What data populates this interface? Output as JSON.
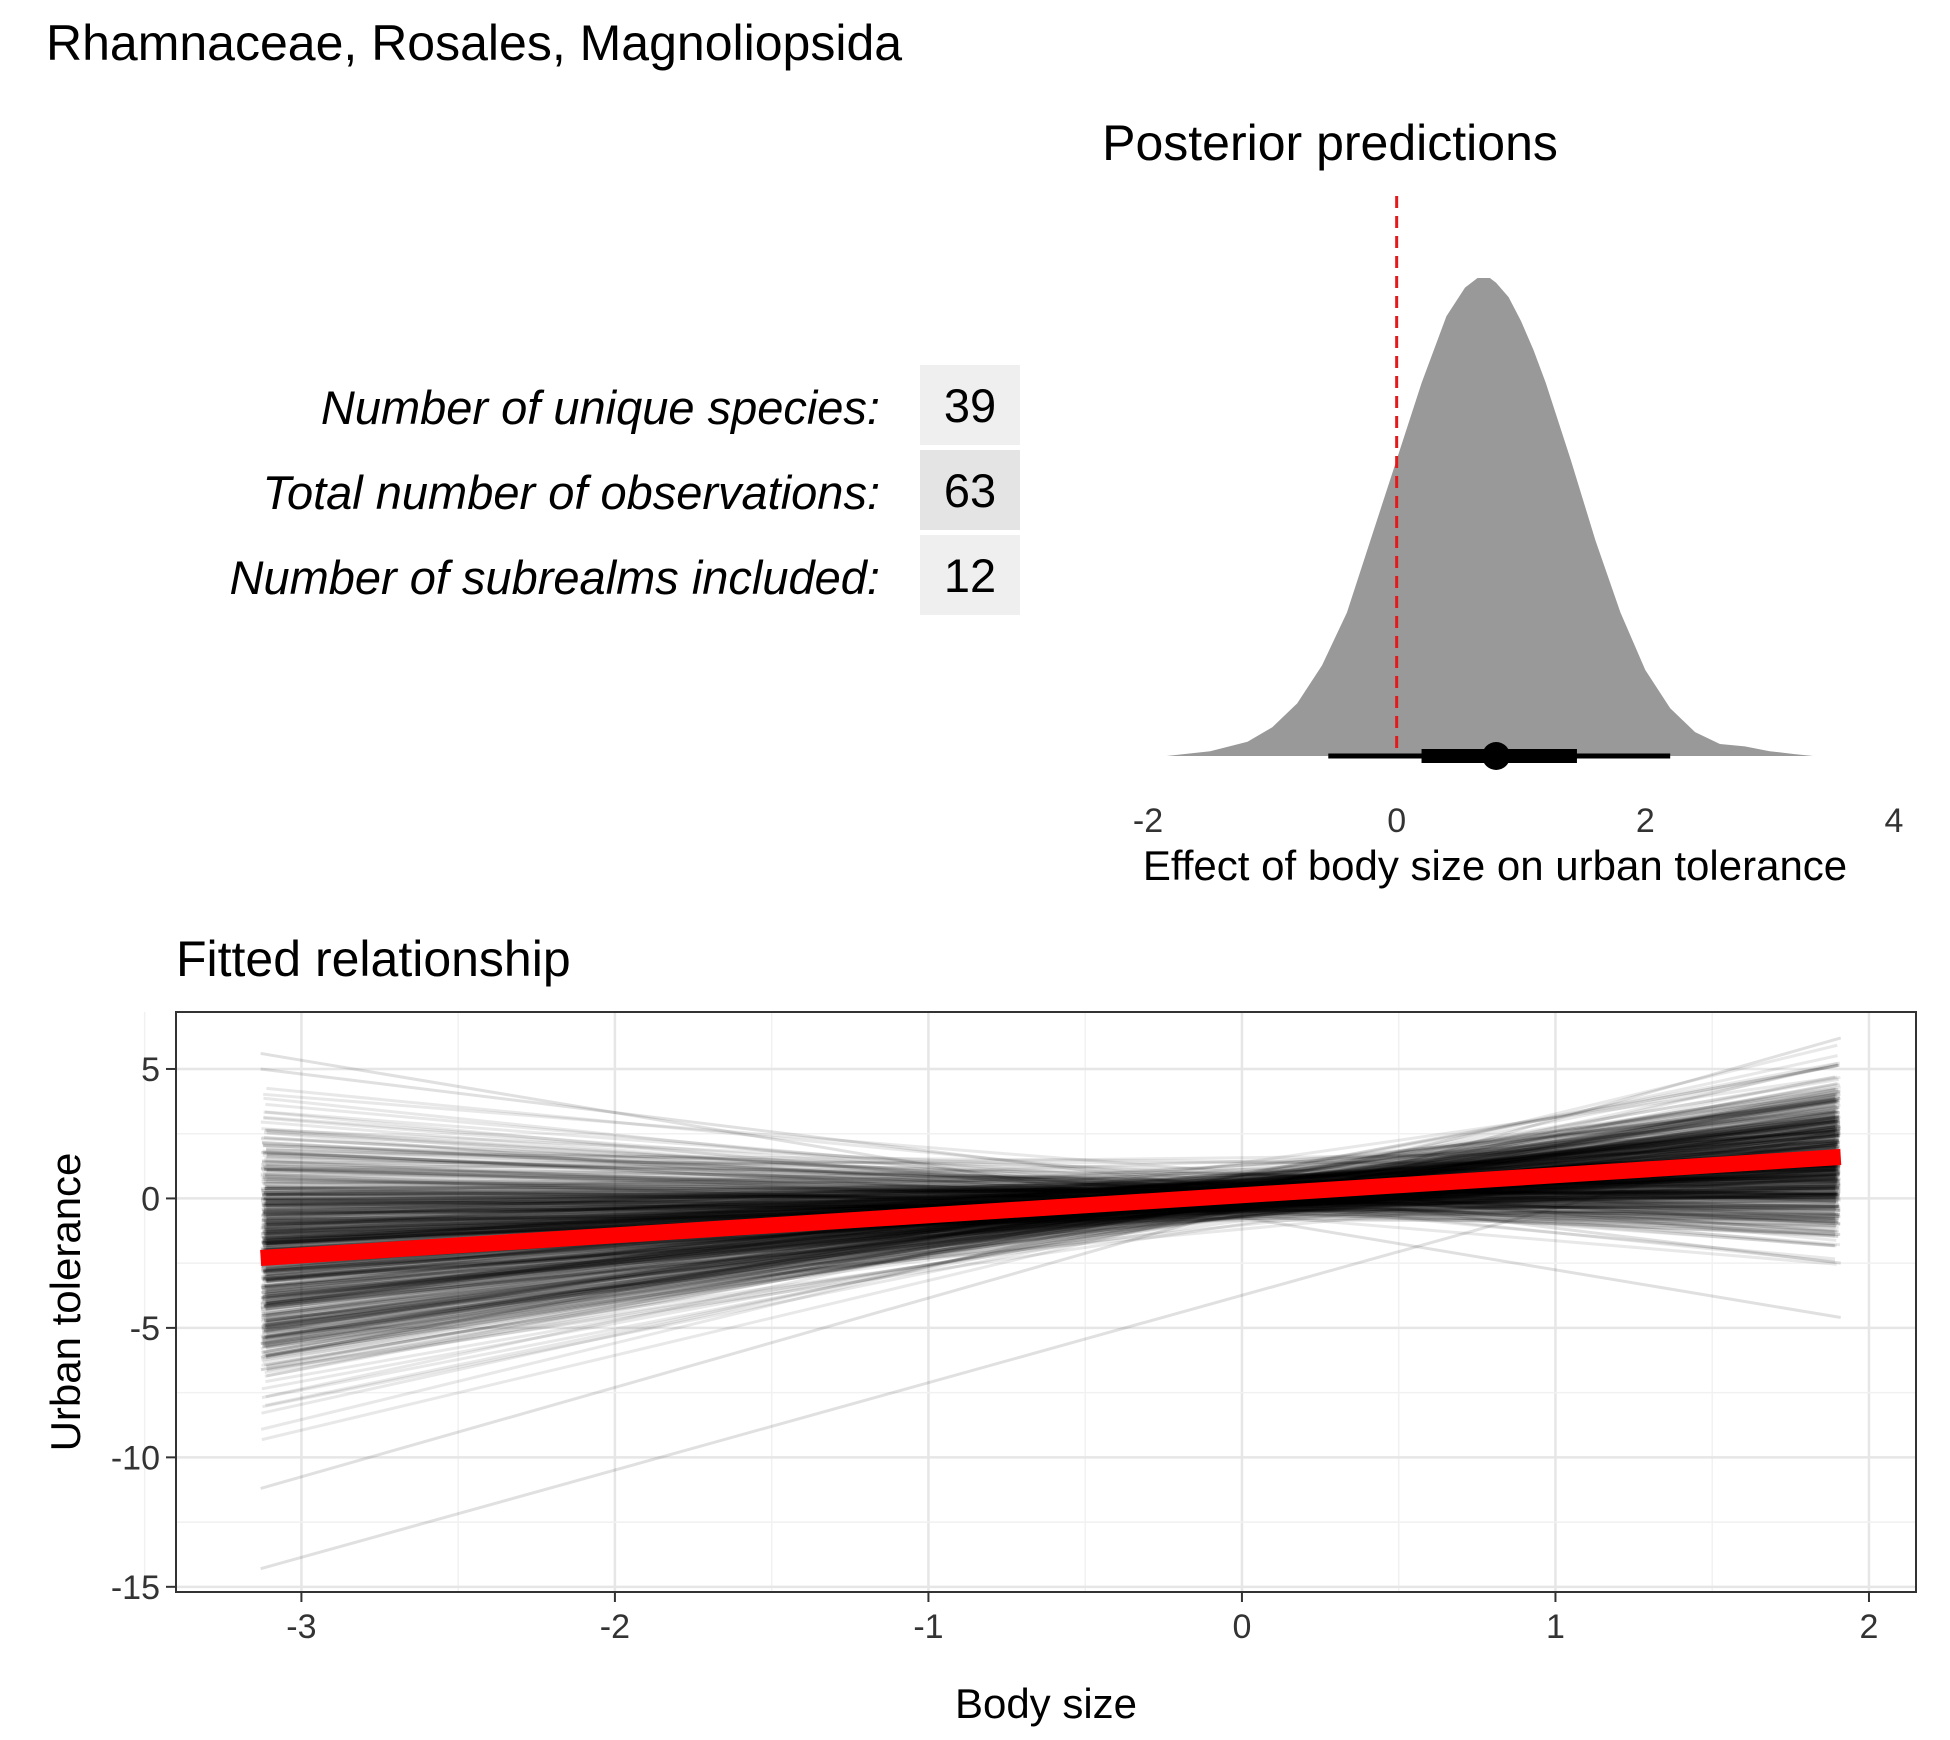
{
  "title": "Rhamnaceae, Rosales, Magnoliopsida",
  "stats": [
    {
      "label": "Number of unique species:",
      "value": "39",
      "bg": "#efefef"
    },
    {
      "label": "Total number of observations:",
      "value": "63",
      "bg": "#e4e4e4"
    },
    {
      "label": "Number of subrealms included:",
      "value": "12",
      "bg": "#efefef"
    }
  ],
  "chart_data": [
    {
      "type": "area",
      "title": "Posterior predictions",
      "xlabel": "Effect of body size on urban tolerance",
      "ylabel": "",
      "xlim": [
        -2,
        4
      ],
      "x_ticks": [
        "-2",
        "0",
        "2",
        "4"
      ],
      "grid": false,
      "fill_color": "#999999",
      "reference_line": {
        "x": 0,
        "color": "#e31a1c",
        "style": "dashed"
      },
      "density": {
        "x": [
          -1.85,
          -1.5,
          -1.2,
          -1.0,
          -0.8,
          -0.6,
          -0.4,
          -0.2,
          0.0,
          0.2,
          0.4,
          0.55,
          0.65,
          0.75,
          0.8,
          0.9,
          1.0,
          1.1,
          1.2,
          1.4,
          1.6,
          1.8,
          2.0,
          2.2,
          2.4,
          2.6,
          2.8,
          3.0,
          3.2,
          3.35
        ],
        "y": [
          0.0,
          0.01,
          0.03,
          0.06,
          0.11,
          0.19,
          0.3,
          0.46,
          0.62,
          0.78,
          0.92,
          0.98,
          1.0,
          1.0,
          0.99,
          0.96,
          0.91,
          0.85,
          0.78,
          0.62,
          0.45,
          0.3,
          0.18,
          0.1,
          0.05,
          0.025,
          0.02,
          0.01,
          0.004,
          0.0
        ]
      },
      "point_estimate": 0.8,
      "interval_66": [
        0.2,
        1.45
      ],
      "interval_95": [
        -0.55,
        2.2
      ]
    },
    {
      "type": "line",
      "title": "Fitted relationship",
      "xlabel": "Body size",
      "ylabel": "Urban tolerance",
      "xlim": [
        -3.4,
        2.15
      ],
      "ylim": [
        -15.2,
        7.2
      ],
      "x_ticks": [
        "-3",
        "-2",
        "-1",
        "0",
        "1",
        "2"
      ],
      "y_ticks": [
        "5",
        "0",
        "-5",
        "-10",
        "-15"
      ],
      "grid": true,
      "x_range": [
        -3.13,
        1.91
      ],
      "posterior_draw_color": "#000000",
      "fit_color": "#ff0000",
      "fit_line": {
        "x": [
          -3.13,
          1.91
        ],
        "y": [
          -2.3,
          1.6
        ]
      },
      "posterior_draws_visible_extremes": [
        {
          "x": [
            -3.13,
            1.91
          ],
          "y": [
            -14.3,
            2.7
          ]
        },
        {
          "x": [
            -3.13,
            1.91
          ],
          "y": [
            5.6,
            -4.6
          ]
        },
        {
          "x": [
            -3.13,
            1.91
          ],
          "y": [
            -11.2,
            6.2
          ]
        },
        {
          "x": [
            -3.13,
            1.91
          ],
          "y": [
            5.0,
            -2.5
          ]
        }
      ]
    }
  ]
}
